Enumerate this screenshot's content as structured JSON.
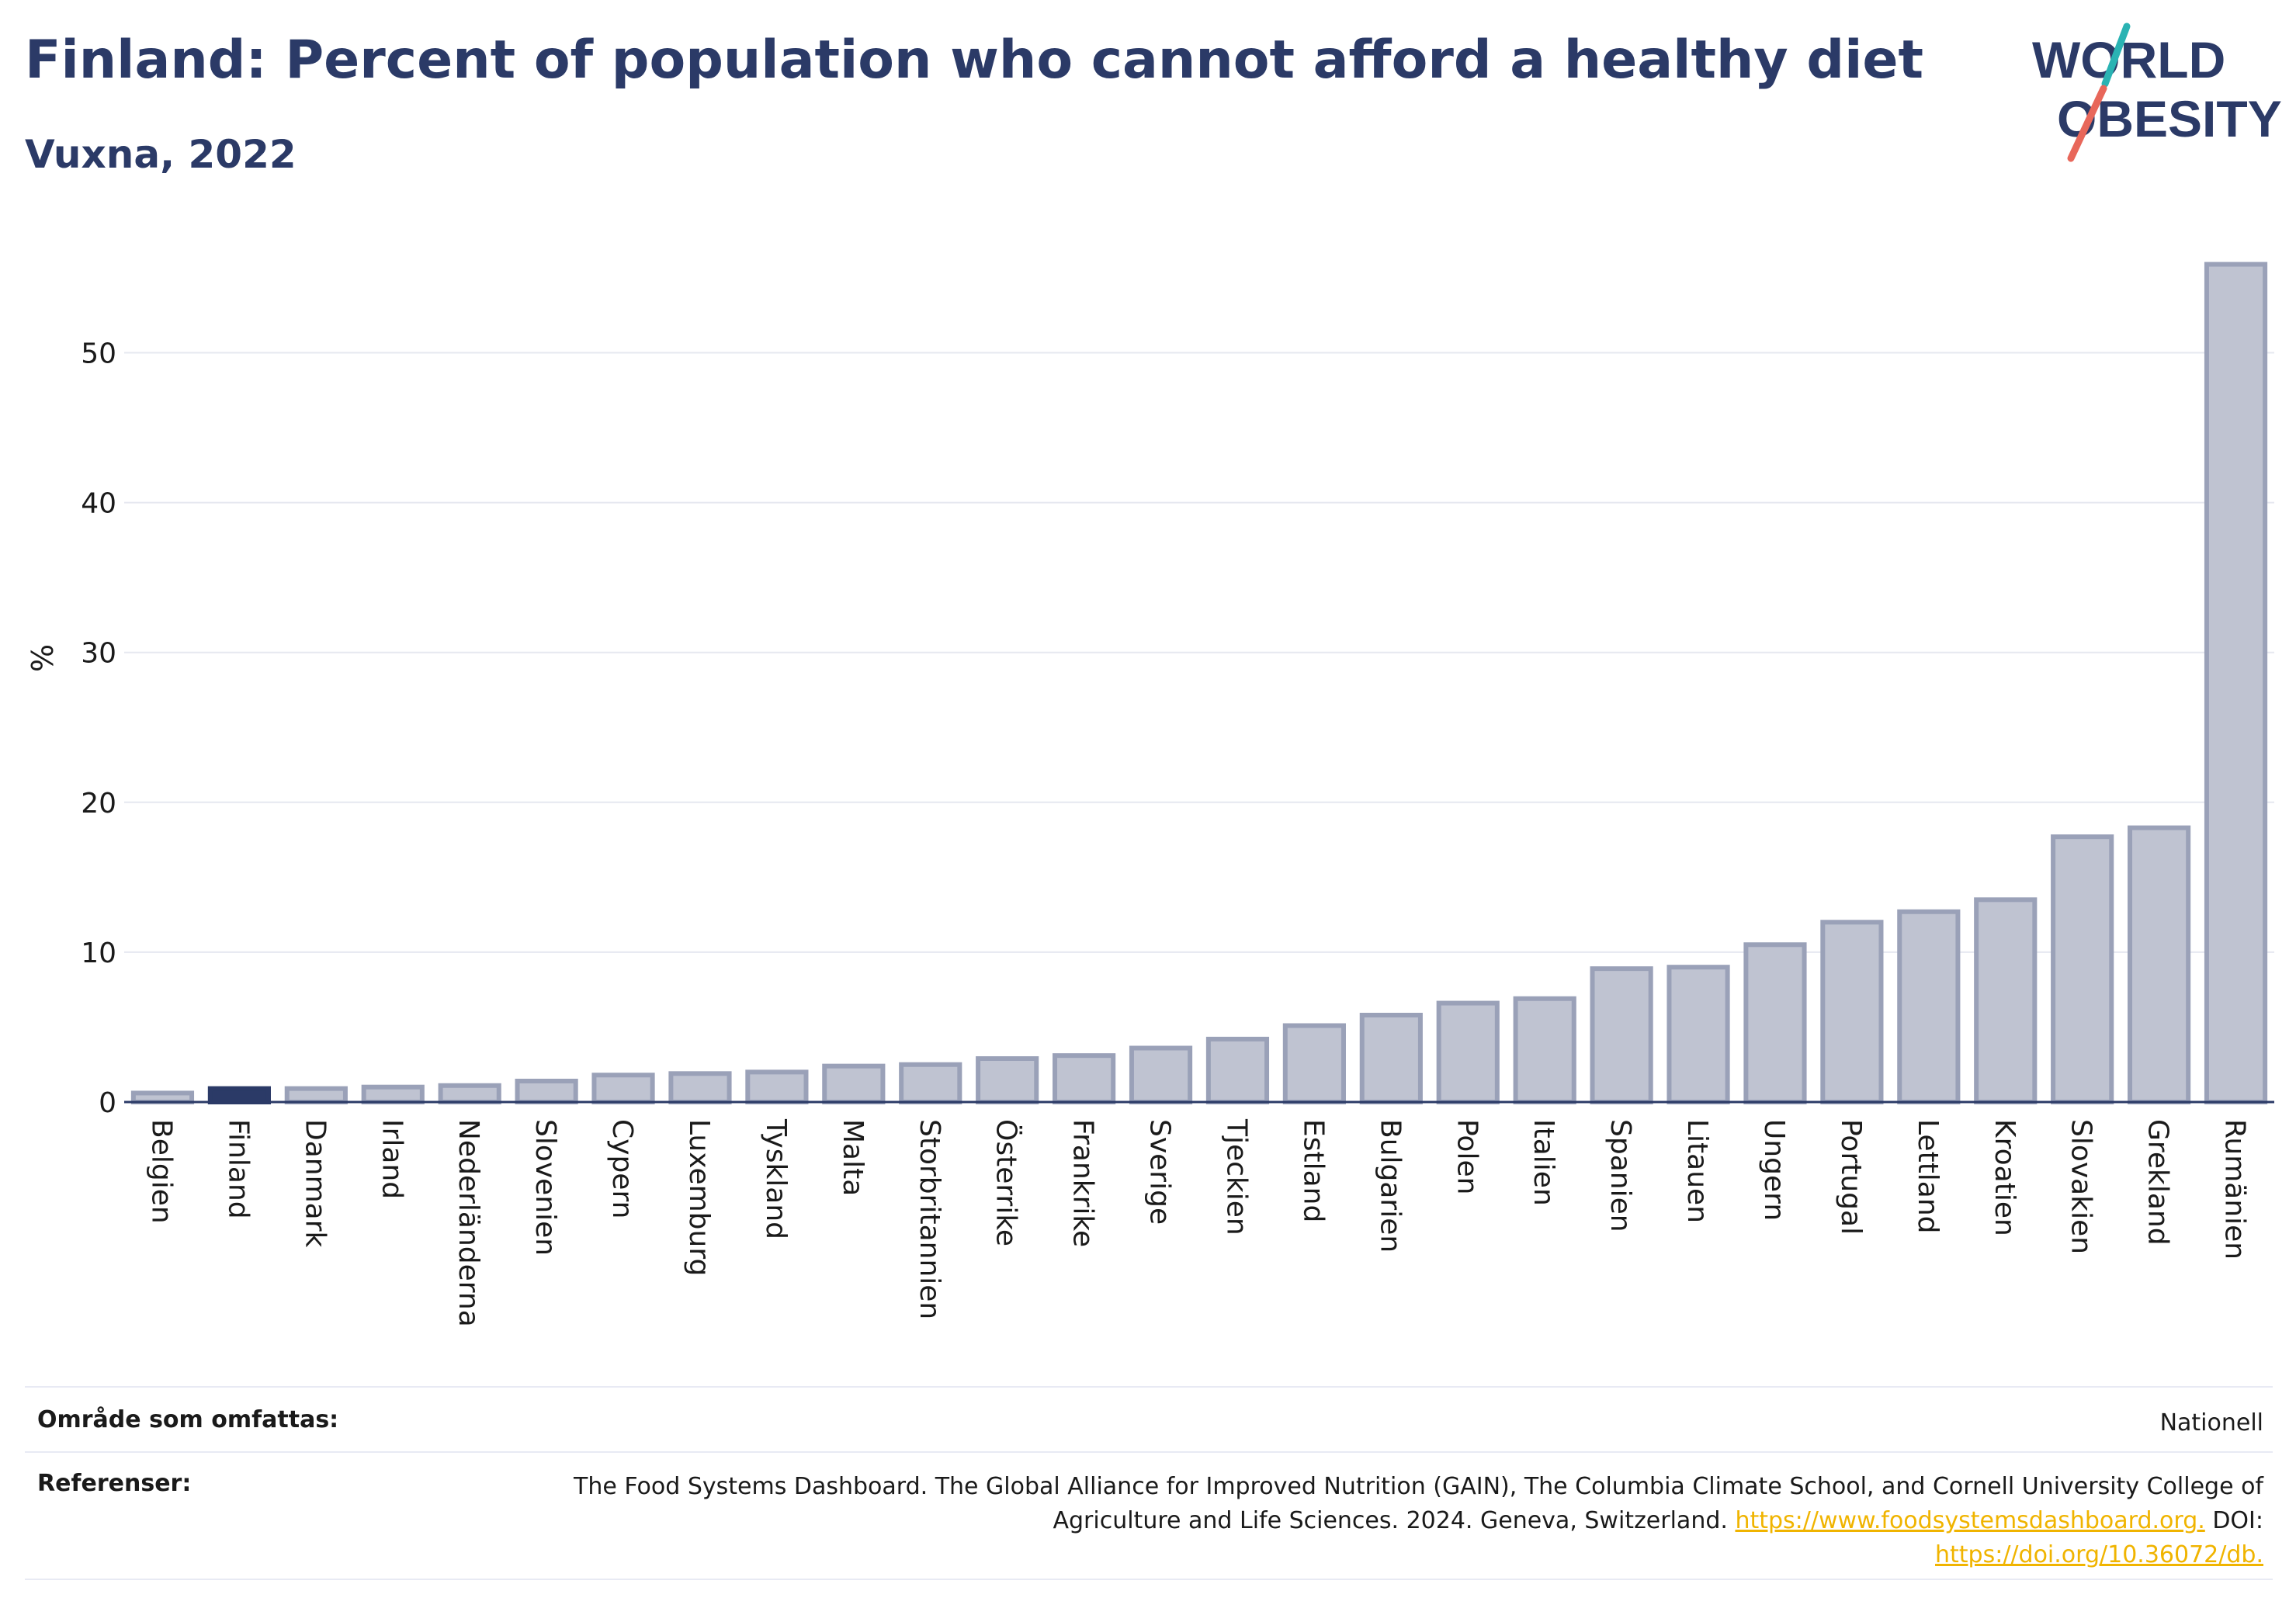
{
  "header": {
    "title": "Finland: Percent of population who cannot afford a healthy diet",
    "subtitle": "Vuxna, 2022",
    "logo_line1": "WORLD",
    "logo_line2": "OBESITY"
  },
  "colors": {
    "highlight_bar": "#2b3a67",
    "bar_fill": "#bfc3d1",
    "bar_stroke": "#9aa1b8",
    "title": "#2b3a67",
    "link": "#f0b400",
    "logo_teal": "#2ab3b3",
    "logo_coral": "#e8675a"
  },
  "chart_data": {
    "type": "bar",
    "title": "Finland: Percent of population who cannot afford a healthy diet",
    "subtitle": "Vuxna, 2022",
    "ylabel": "%",
    "xlabel": "",
    "ylim": [
      0,
      58
    ],
    "yticks": [
      0,
      10,
      20,
      30,
      40,
      50
    ],
    "grid": true,
    "highlight": "Finland",
    "categories": [
      "Belgien",
      "Finland",
      "Danmark",
      "Irland",
      "Nederländerna",
      "Slovenien",
      "Cypern",
      "Luxemburg",
      "Tyskland",
      "Malta",
      "Storbritannien",
      "Österrike",
      "Frankrike",
      "Sverige",
      "Tjeckien",
      "Estland",
      "Bulgarien",
      "Polen",
      "Italien",
      "Spanien",
      "Litauen",
      "Ungern",
      "Portugal",
      "Lettland",
      "Kroatien",
      "Slovakien",
      "Grekland",
      "Rumänien"
    ],
    "values": [
      0.6,
      0.9,
      0.9,
      1.0,
      1.1,
      1.4,
      1.8,
      1.9,
      2.0,
      2.4,
      2.5,
      2.9,
      3.1,
      3.6,
      4.2,
      5.1,
      5.8,
      6.6,
      6.9,
      8.9,
      9.0,
      10.5,
      12.0,
      12.7,
      13.5,
      17.7,
      18.3,
      55.9
    ]
  },
  "footer": {
    "coverage_label": "Område som omfattas:",
    "coverage_value": "Nationell",
    "references_label": "Referenser:",
    "references_text": "The Food Systems Dashboard. The Global Alliance for Improved Nutrition (GAIN), The Columbia Climate School, and Cornell University College of Agriculture and Life Sciences. 2024. Geneva, Switzerland.",
    "references_link1": "https://www.foodsystemsdashboard.org.",
    "references_doi_label": "DOI:",
    "references_link2": "https://doi.org/10.36072/db."
  }
}
